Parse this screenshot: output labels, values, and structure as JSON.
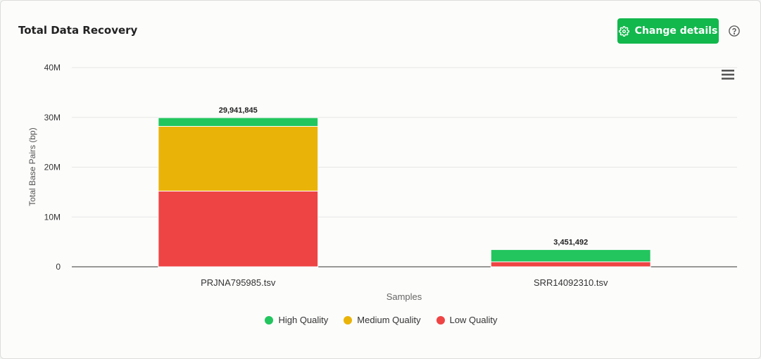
{
  "card": {
    "title": "Total Data Recovery"
  },
  "toolbar": {
    "change_label": "Change details",
    "change_icon": "gear-icon",
    "help_icon": "help-circle-icon",
    "menu_icon": "hamburger-menu-icon"
  },
  "chart_data": {
    "type": "bar",
    "stacked": true,
    "categories": [
      "PRJNA795985.tsv",
      "SRR14092310.tsv"
    ],
    "series": [
      {
        "name": "Low Quality",
        "color": "#ef4444",
        "values": [
          15200000,
          1000000
        ]
      },
      {
        "name": "Medium Quality",
        "color": "#eab308",
        "values": [
          13000000,
          0
        ]
      },
      {
        "name": "High Quality",
        "color": "#22c55e",
        "values": [
          1741845,
          2451492
        ]
      }
    ],
    "totals": [
      "29,941,845",
      "3,451,492"
    ],
    "legend_order": [
      "High Quality",
      "Medium Quality",
      "Low Quality"
    ],
    "xlabel": "Samples",
    "ylabel": "Total Base Pairs (bp)",
    "ylim": [
      0,
      40000000
    ],
    "yticks": [
      0,
      10000000,
      20000000,
      30000000,
      40000000
    ],
    "ytick_labels": [
      "0",
      "10M",
      "20M",
      "30M",
      "40M"
    ],
    "grid": true,
    "legend_position": "bottom"
  }
}
